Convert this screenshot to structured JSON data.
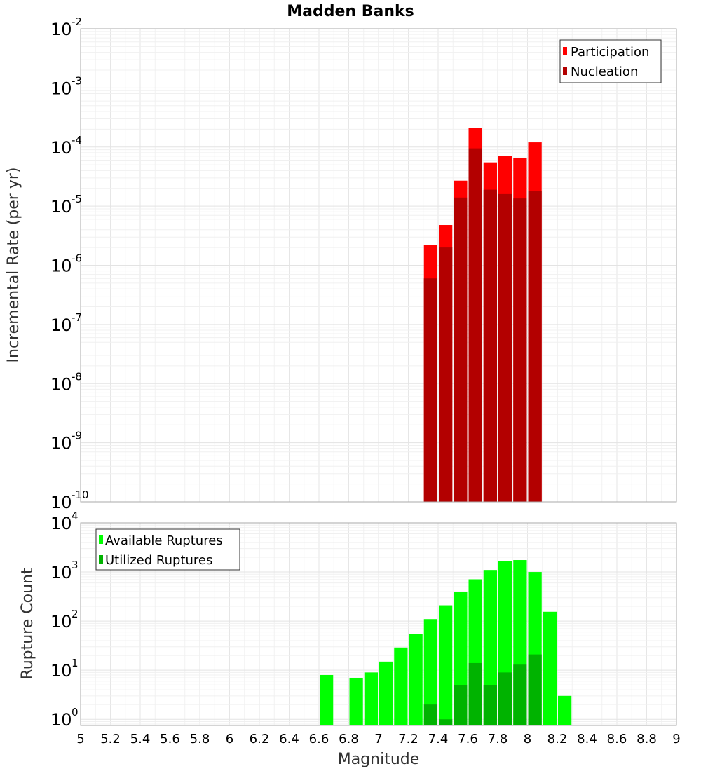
{
  "chart_data": {
    "title": "Madden Banks",
    "xlabel": "Magnitude",
    "xlim": [
      5,
      9
    ],
    "x_ticks": [
      "5",
      "5.2",
      "5.4",
      "5.6",
      "5.8",
      "6",
      "6.2",
      "6.4",
      "6.6",
      "6.8",
      "7",
      "7.2",
      "7.4",
      "7.6",
      "7.8",
      "8",
      "8.2",
      "8.4",
      "8.6",
      "8.8",
      "9"
    ],
    "bin_width": 0.1,
    "panels": [
      {
        "type": "bar",
        "ylabel": "Incremental Rate (per yr)",
        "yscale": "log",
        "ylim": [
          1e-10,
          0.01
        ],
        "y_tick_exponents": [
          "-10",
          "-9",
          "-8",
          "-7",
          "-6",
          "-5",
          "-4",
          "-3",
          "-2"
        ],
        "grid": true,
        "legend_position": "top-right",
        "series": [
          {
            "name": "Participation",
            "color": "#ff0000",
            "x": [
              7.35,
              7.45,
              7.55,
              7.65,
              7.75,
              7.85,
              7.95,
              8.05
            ],
            "values": [
              2.2e-06,
              4.8e-06,
              2.7e-05,
              0.00021,
              5.5e-05,
              7e-05,
              6.6e-05,
              0.00012
            ]
          },
          {
            "name": "Nucleation",
            "color": "#b30000",
            "x": [
              7.35,
              7.45,
              7.55,
              7.65,
              7.75,
              7.85,
              7.95,
              8.05
            ],
            "values": [
              6e-07,
              2e-06,
              1.4e-05,
              9.5e-05,
              1.9e-05,
              1.6e-05,
              1.35e-05,
              1.8e-05
            ]
          }
        ]
      },
      {
        "type": "bar",
        "ylabel": "Rupture Count",
        "yscale": "log",
        "ylim": [
          0.75,
          10000
        ],
        "y_tick_exponents": [
          "0",
          "1",
          "2",
          "3",
          "4"
        ],
        "grid": true,
        "legend_position": "top-left",
        "series": [
          {
            "name": "Available Ruptures",
            "color": "#00ff00",
            "x": [
              6.65,
              6.85,
              6.95,
              7.05,
              7.15,
              7.25,
              7.35,
              7.45,
              7.55,
              7.65,
              7.75,
              7.85,
              7.95,
              8.05,
              8.15,
              8.25
            ],
            "values": [
              8,
              7,
              9,
              15,
              29,
              55,
              110,
              210,
              390,
              710,
              1100,
              1650,
              1750,
              1000,
              155,
              3
            ]
          },
          {
            "name": "Utilized Ruptures",
            "color": "#00b300",
            "x": [
              7.35,
              7.45,
              7.55,
              7.65,
              7.75,
              7.85,
              7.95,
              8.05
            ],
            "values": [
              2,
              1,
              5,
              14,
              5,
              9,
              13,
              21
            ]
          }
        ]
      }
    ]
  }
}
